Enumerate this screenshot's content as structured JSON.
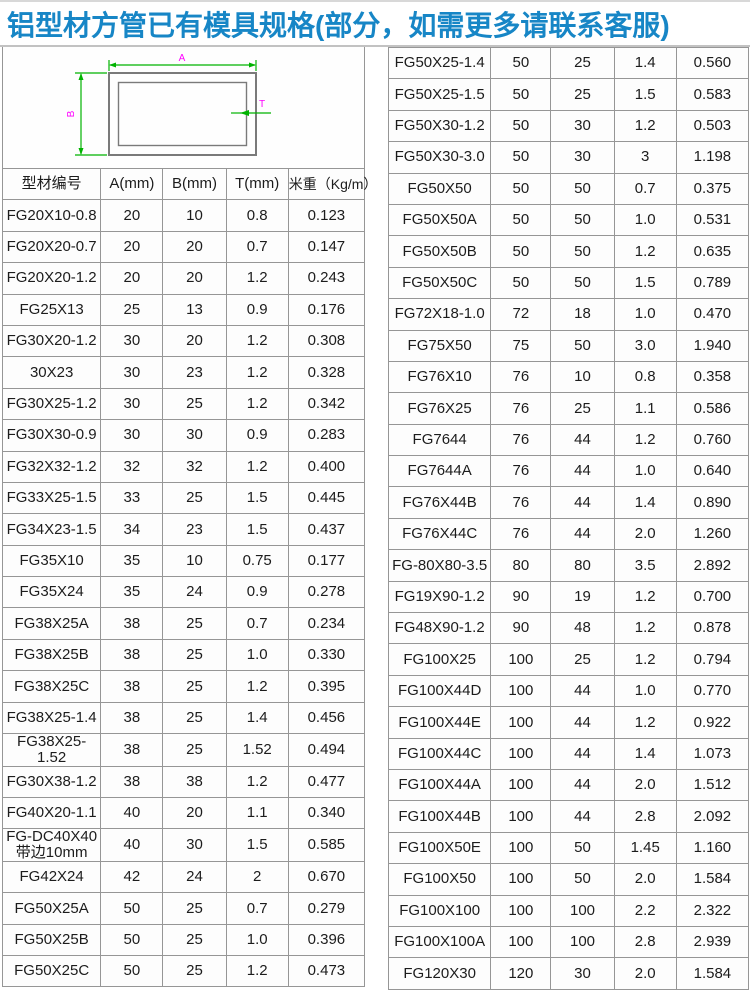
{
  "page": {
    "title": "铝型材方管已有模具规格(部分，如需更多请联系客服)",
    "title_color": "#1786c6"
  },
  "diagram": {
    "description": "rectangular-tube-cross-section",
    "labels": {
      "width": "A",
      "height": "B",
      "thickness": "T"
    },
    "colors": {
      "dimension_line": "#00b300",
      "label": "#ff00ff",
      "outline": "#7a7a7a"
    }
  },
  "table": {
    "headers": [
      "型材编号",
      "A(mm)",
      "B(mm)",
      "T(mm)",
      "米重（Kg/m）"
    ],
    "left_rows": [
      [
        "FG20X10-0.8",
        "20",
        "10",
        "0.8",
        "0.123"
      ],
      [
        "FG20X20-0.7",
        "20",
        "20",
        "0.7",
        "0.147"
      ],
      [
        "FG20X20-1.2",
        "20",
        "20",
        "1.2",
        "0.243"
      ],
      [
        "FG25X13",
        "25",
        "13",
        "0.9",
        "0.176"
      ],
      [
        "FG30X20-1.2",
        "30",
        "20",
        "1.2",
        "0.308"
      ],
      [
        "30X23",
        "30",
        "23",
        "1.2",
        "0.328"
      ],
      [
        "FG30X25-1.2",
        "30",
        "25",
        "1.2",
        "0.342"
      ],
      [
        "FG30X30-0.9",
        "30",
        "30",
        "0.9",
        "0.283"
      ],
      [
        "FG32X32-1.2",
        "32",
        "32",
        "1.2",
        "0.400"
      ],
      [
        "FG33X25-1.5",
        "33",
        "25",
        "1.5",
        "0.445"
      ],
      [
        "FG34X23-1.5",
        "34",
        "23",
        "1.5",
        "0.437"
      ],
      [
        "FG35X10",
        "35",
        "10",
        "0.75",
        "0.177"
      ],
      [
        "FG35X24",
        "35",
        "24",
        "0.9",
        "0.278"
      ],
      [
        "FG38X25A",
        "38",
        "25",
        "0.7",
        "0.234"
      ],
      [
        "FG38X25B",
        "38",
        "25",
        "1.0",
        "0.330"
      ],
      [
        "FG38X25C",
        "38",
        "25",
        "1.2",
        "0.395"
      ],
      [
        "FG38X25-1.4",
        "38",
        "25",
        "1.4",
        "0.456"
      ],
      [
        "FG38X25-1.52",
        "38",
        "25",
        "1.52",
        "0.494"
      ],
      [
        "FG30X38-1.2",
        "38",
        "38",
        "1.2",
        "0.477"
      ],
      [
        "FG40X20-1.1",
        "40",
        "20",
        "1.1",
        "0.340"
      ],
      [
        "FG-DC40X40\n带边10mm",
        "40",
        "30",
        "1.5",
        "0.585"
      ],
      [
        "FG42X24",
        "42",
        "24",
        "2",
        "0.670"
      ],
      [
        "FG50X25A",
        "50",
        "25",
        "0.7",
        "0.279"
      ],
      [
        "FG50X25B",
        "50",
        "25",
        "1.0",
        "0.396"
      ],
      [
        "FG50X25C",
        "50",
        "25",
        "1.2",
        "0.473"
      ]
    ],
    "right_rows": [
      [
        "FG50X25-1.4",
        "50",
        "25",
        "1.4",
        "0.560"
      ],
      [
        "FG50X25-1.5",
        "50",
        "25",
        "1.5",
        "0.583"
      ],
      [
        "FG50X30-1.2",
        "50",
        "30",
        "1.2",
        "0.503"
      ],
      [
        "FG50X30-3.0",
        "50",
        "30",
        "3",
        "1.198"
      ],
      [
        "FG50X50",
        "50",
        "50",
        "0.7",
        "0.375"
      ],
      [
        "FG50X50A",
        "50",
        "50",
        "1.0",
        "0.531"
      ],
      [
        "FG50X50B",
        "50",
        "50",
        "1.2",
        "0.635"
      ],
      [
        "FG50X50C",
        "50",
        "50",
        "1.5",
        "0.789"
      ],
      [
        "FG72X18-1.0",
        "72",
        "18",
        "1.0",
        "0.470"
      ],
      [
        "FG75X50",
        "75",
        "50",
        "3.0",
        "1.940"
      ],
      [
        "FG76X10",
        "76",
        "10",
        "0.8",
        "0.358"
      ],
      [
        "FG76X25",
        "76",
        "25",
        "1.1",
        "0.586"
      ],
      [
        "FG7644",
        "76",
        "44",
        "1.2",
        "0.760"
      ],
      [
        "FG7644A",
        "76",
        "44",
        "1.0",
        "0.640"
      ],
      [
        "FG76X44B",
        "76",
        "44",
        "1.4",
        "0.890"
      ],
      [
        "FG76X44C",
        "76",
        "44",
        "2.0",
        "1.260"
      ],
      [
        "FG-80X80-3.5",
        "80",
        "80",
        "3.5",
        "2.892"
      ],
      [
        "FG19X90-1.2",
        "90",
        "19",
        "1.2",
        "0.700"
      ],
      [
        "FG48X90-1.2",
        "90",
        "48",
        "1.2",
        "0.878"
      ],
      [
        "FG100X25",
        "100",
        "25",
        "1.2",
        "0.794"
      ],
      [
        "FG100X44D",
        "100",
        "44",
        "1.0",
        "0.770"
      ],
      [
        "FG100X44E",
        "100",
        "44",
        "1.2",
        "0.922"
      ],
      [
        "FG100X44C",
        "100",
        "44",
        "1.4",
        "1.073"
      ],
      [
        "FG100X44A",
        "100",
        "44",
        "2.0",
        "1.512"
      ],
      [
        "FG100X44B",
        "100",
        "44",
        "2.8",
        "2.092"
      ],
      [
        "FG100X50E",
        "100",
        "50",
        "1.45",
        "1.160"
      ],
      [
        "FG100X50",
        "100",
        "50",
        "2.0",
        "1.584"
      ],
      [
        "FG100X100",
        "100",
        "100",
        "2.2",
        "2.322"
      ],
      [
        "FG100X100A",
        "100",
        "100",
        "2.8",
        "2.939"
      ],
      [
        "FG120X30",
        "120",
        "30",
        "2.0",
        "1.584"
      ]
    ]
  }
}
